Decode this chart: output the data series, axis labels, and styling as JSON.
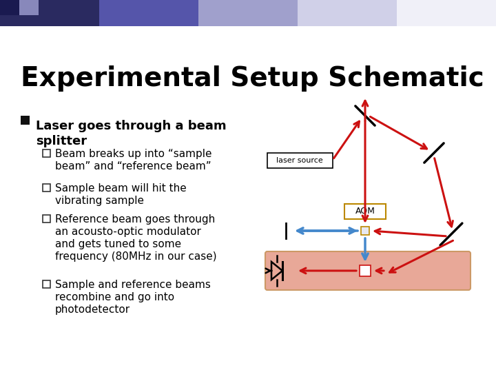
{
  "title": "Experimental Setup Schematic",
  "bullet_main": "Laser goes through a beam\nsplitter",
  "bullets_sub": [
    "Beam breaks up into “sample\nbeam” and “reference beam”",
    "Sample beam will hit the\nvibrating sample",
    "Reference beam goes through\nan acousto-optic modulator\nand gets tuned to some\nfrequency (80MHz in our case)",
    "Sample and reference beams\nrecombine and go into\nphotodetector"
  ],
  "bg_color": "#ffffff",
  "header_gradient": [
    "#2a2a60",
    "#5555aa",
    "#a0a0cc",
    "#d0d0e8",
    "#f0f0f8",
    "#ffffff"
  ],
  "title_color": "#000000",
  "bullet_color": "#000000",
  "red_color": "#cc1111",
  "blue_color": "#4488cc",
  "black_color": "#000000",
  "aom_box_color": "#bb8800",
  "sample_rect_color": "#e8a898",
  "sample_rect_edge": "#cc9966"
}
